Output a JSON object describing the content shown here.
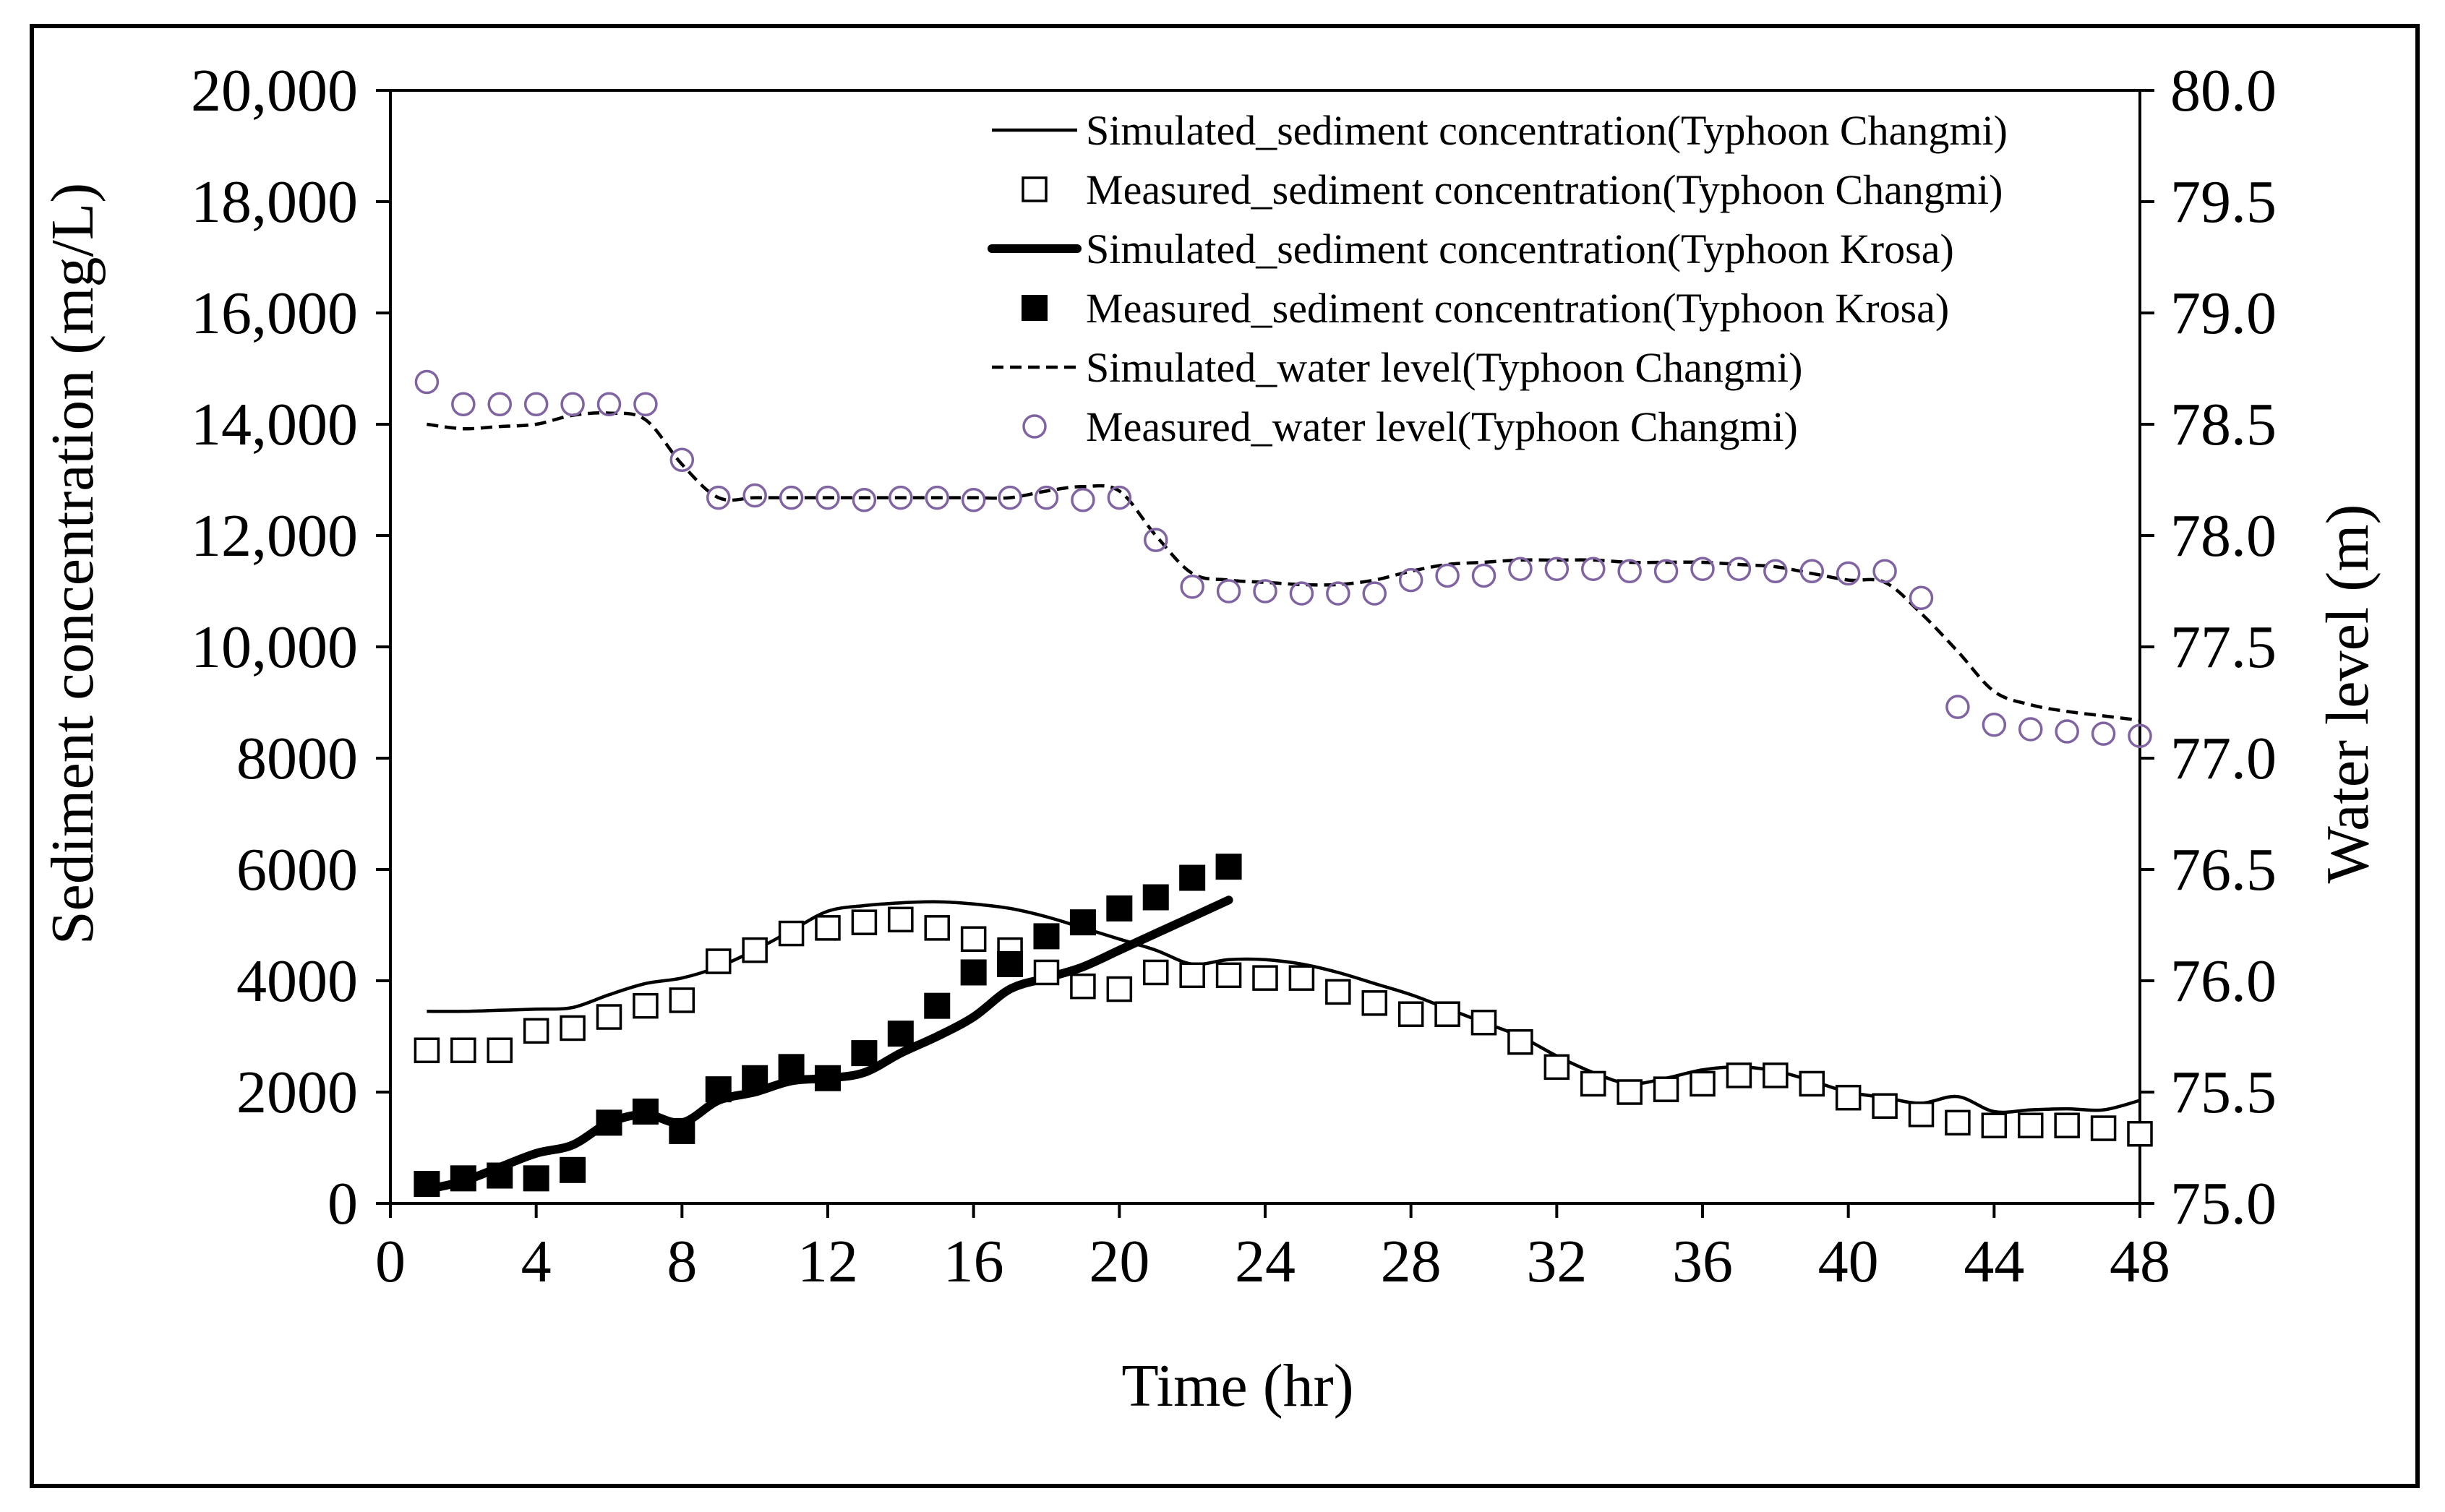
{
  "chart_data": {
    "type": "line",
    "title": "",
    "xlabel": "Time (hr)",
    "ylabel": "Sediment concentration (mg/L)",
    "y2label": "Water level (m)",
    "xlim": [
      0,
      48
    ],
    "ylim": [
      0,
      20000
    ],
    "y2lim": [
      75.0,
      80.0
    ],
    "x_ticks": [
      "0",
      "4",
      "8",
      "12",
      "16",
      "20",
      "24",
      "28",
      "32",
      "36",
      "40",
      "44",
      "48"
    ],
    "y_ticks": [
      "0",
      "2000",
      "4000",
      "6000",
      "8000",
      "10,000",
      "12,000",
      "14,000",
      "16,000",
      "18,000",
      "20,000"
    ],
    "y2_ticks": [
      "75.0",
      "75.5",
      "76.0",
      "76.5",
      "77.0",
      "77.5",
      "78.0",
      "78.5",
      "79.0",
      "79.5",
      "80.0"
    ],
    "grid": false,
    "legend_position": "top-right",
    "series": [
      {
        "name": "Simulated_sediment concentration(Typhoon Changmi)",
        "style": "thin-line",
        "axis": "left",
        "x": [
          1,
          2,
          3,
          4,
          5,
          6,
          7,
          8,
          9,
          10,
          11,
          12,
          13,
          14,
          15,
          16,
          17,
          18,
          19,
          20,
          21,
          22,
          23,
          24,
          25,
          26,
          27,
          28,
          29,
          30,
          31,
          32,
          33,
          34,
          35,
          36,
          37,
          38,
          39,
          40,
          41,
          42,
          43,
          44,
          45,
          46,
          47,
          48
        ],
        "values": [
          3450,
          3450,
          3470,
          3490,
          3520,
          3750,
          3950,
          4050,
          4250,
          4550,
          4900,
          5250,
          5350,
          5400,
          5420,
          5380,
          5300,
          5150,
          4950,
          4750,
          4550,
          4300,
          4380,
          4380,
          4300,
          4150,
          3950,
          3750,
          3500,
          3250,
          3000,
          2650,
          2350,
          2150,
          2250,
          2400,
          2450,
          2380,
          2200,
          2000,
          1900,
          1800,
          1920,
          1650,
          1680,
          1700,
          1680,
          1850
        ]
      },
      {
        "name": "Measured_sediment concentration(Typhoon Changmi)",
        "style": "open-square",
        "axis": "left",
        "x": [
          1,
          2,
          3,
          4,
          5,
          6,
          7,
          8,
          9,
          10,
          11,
          12,
          13,
          14,
          15,
          16,
          17,
          18,
          19,
          20,
          21,
          22,
          23,
          24,
          25,
          26,
          27,
          28,
          29,
          30,
          31,
          32,
          33,
          34,
          35,
          36,
          37,
          38,
          39,
          40,
          41,
          42,
          43,
          44,
          45,
          46,
          47,
          48
        ],
        "values": [
          2750,
          2750,
          2750,
          3100,
          3150,
          3350,
          3550,
          3650,
          4350,
          4550,
          4850,
          4950,
          5050,
          5100,
          4950,
          4750,
          4550,
          4150,
          3900,
          3850,
          4150,
          4100,
          4100,
          4050,
          4050,
          3800,
          3600,
          3400,
          3400,
          3250,
          2900,
          2450,
          2150,
          2000,
          2050,
          2150,
          2300,
          2300,
          2150,
          1900,
          1750,
          1600,
          1450,
          1400,
          1400,
          1400,
          1350,
          1250
        ]
      },
      {
        "name": "Simulated_sediment concentration(Typhoon Krosa)",
        "style": "thick-line",
        "axis": "left",
        "x": [
          1,
          2,
          3,
          4,
          5,
          6,
          7,
          8,
          9,
          10,
          11,
          12,
          13,
          14,
          15,
          16,
          17,
          18,
          19,
          20,
          21,
          22,
          23
        ],
        "values": [
          250,
          400,
          650,
          900,
          1050,
          1450,
          1600,
          1450,
          1850,
          2000,
          2200,
          2250,
          2350,
          2700,
          3000,
          3350,
          3850,
          4050,
          4250,
          4550,
          4850,
          5150,
          5450
        ]
      },
      {
        "name": "Measured_sediment concentration(Typhoon Krosa)",
        "style": "filled-square",
        "axis": "left",
        "x": [
          1,
          2,
          3,
          4,
          5,
          6,
          7,
          8,
          9,
          10,
          11,
          12,
          13,
          14,
          15,
          16,
          17,
          18,
          19,
          20,
          21,
          22,
          23
        ],
        "values": [
          350,
          450,
          500,
          450,
          600,
          1450,
          1650,
          1300,
          2050,
          2250,
          2450,
          2250,
          2700,
          3050,
          3550,
          4150,
          4300,
          4800,
          5050,
          5300,
          5500,
          5850,
          6050
        ]
      },
      {
        "name": "Simulated_water level(Typhoon Changmi)",
        "style": "dashed-line",
        "axis": "right",
        "x": [
          1,
          2,
          3,
          4,
          5,
          6,
          7,
          8,
          9,
          10,
          11,
          12,
          13,
          14,
          15,
          16,
          17,
          18,
          19,
          20,
          21,
          22,
          23,
          24,
          25,
          26,
          27,
          28,
          29,
          30,
          31,
          32,
          33,
          34,
          35,
          36,
          37,
          38,
          39,
          40,
          41,
          42,
          43,
          44,
          45,
          46,
          47,
          48
        ],
        "values": [
          78.5,
          78.48,
          78.49,
          78.5,
          78.54,
          78.55,
          78.52,
          78.32,
          78.17,
          78.17,
          78.17,
          78.17,
          78.17,
          78.17,
          78.17,
          78.17,
          78.17,
          78.2,
          78.22,
          78.2,
          78.0,
          77.83,
          77.8,
          77.79,
          77.78,
          77.78,
          77.8,
          77.84,
          77.87,
          77.88,
          77.89,
          77.89,
          77.89,
          77.88,
          77.88,
          77.88,
          77.87,
          77.86,
          77.83,
          77.8,
          77.79,
          77.65,
          77.48,
          77.3,
          77.24,
          77.21,
          77.19,
          77.17
        ]
      },
      {
        "name": "Measured_water level(Typhoon Changmi)",
        "style": "open-circle",
        "axis": "right",
        "x": [
          1,
          2,
          3,
          4,
          5,
          6,
          7,
          8,
          9,
          10,
          11,
          12,
          13,
          14,
          15,
          16,
          17,
          18,
          19,
          20,
          21,
          22,
          23,
          24,
          25,
          26,
          27,
          28,
          29,
          30,
          31,
          32,
          33,
          34,
          35,
          36,
          37,
          38,
          39,
          40,
          41,
          42,
          43,
          44,
          45,
          46,
          47,
          48
        ],
        "values": [
          78.69,
          78.59,
          78.59,
          78.59,
          78.59,
          78.59,
          78.59,
          78.34,
          78.17,
          78.18,
          78.17,
          78.17,
          78.16,
          78.17,
          78.17,
          78.16,
          78.17,
          78.17,
          78.16,
          78.17,
          77.98,
          77.77,
          77.75,
          77.75,
          77.74,
          77.74,
          77.74,
          77.8,
          77.82,
          77.82,
          77.85,
          77.85,
          77.85,
          77.84,
          77.84,
          77.85,
          77.85,
          77.84,
          77.84,
          77.83,
          77.84,
          77.72,
          77.23,
          77.15,
          77.13,
          77.12,
          77.11,
          77.1
        ]
      }
    ]
  },
  "colors": {
    "axis": "#000000",
    "series_black": "#000000",
    "water_level_marker": "#8064a2"
  }
}
